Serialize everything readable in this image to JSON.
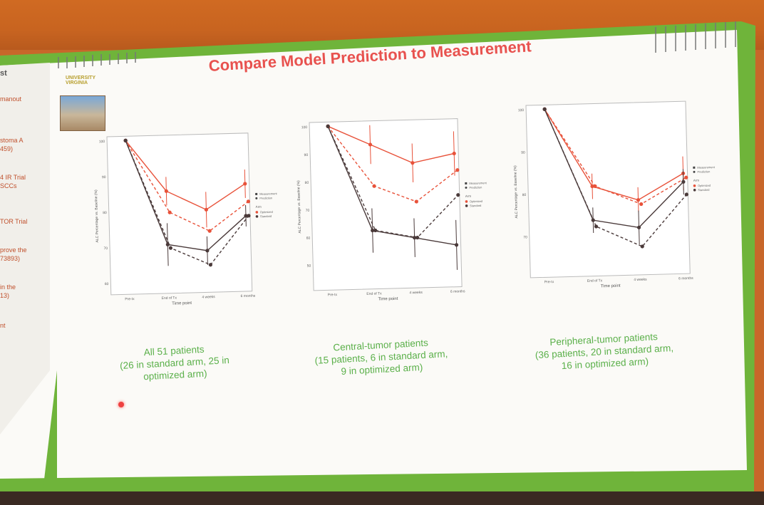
{
  "slide": {
    "title": "Compare Model Prediction to Measurement",
    "logo_text": "UNIVERSITY VIRGINIA",
    "left_panel_fragments": [
      "st",
      "manout",
      "stoma A",
      "459)",
      "4 IR Trial",
      "SCCs",
      "TOR Trial",
      "prove the",
      "73893)",
      "in the",
      "13)",
      "nt"
    ],
    "captions": [
      "All 51 patients\n(26 in standard arm, 25 in\noptimized arm)",
      "Central-tumor patients\n(15 patients, 6 in standard arm,\n9 in optimized arm)",
      "Peripheral-tumor patients\n(36 patients, 20 in standard arm,\n16 in optimized arm)"
    ]
  },
  "colors": {
    "optimized": "#e8523a",
    "standard": "#4a3a3a",
    "caption": "#5bb04a",
    "title": "#e8524f"
  },
  "chart_data": [
    {
      "type": "line",
      "categories": [
        "Pre-tx",
        "End of Tx",
        "4 weeks",
        "6 months"
      ],
      "xlabel": "Time point",
      "ylabel": "ALC Percentage vs. Baseline (%)",
      "yticks": [
        100,
        90,
        80,
        70,
        60
      ],
      "ylim": [
        60,
        100
      ],
      "legend": {
        "lines": [
          "Measurement",
          "Prediction"
        ],
        "arm_title": "Arm",
        "arms": [
          "Optimized",
          "Standard"
        ]
      },
      "series": [
        {
          "name": "Optimized",
          "kind": "Measurement",
          "values": [
            100,
            85.5,
            80,
            87
          ],
          "err": [
            0,
            4,
            5,
            4
          ]
        },
        {
          "name": "Optimized",
          "kind": "Prediction",
          "values": [
            100,
            79.5,
            74,
            82
          ],
          "err": [
            0,
            0,
            0,
            0
          ]
        },
        {
          "name": "Standard",
          "kind": "Measurement",
          "values": [
            100,
            70.5,
            68.5,
            78
          ],
          "err": [
            0,
            6,
            4,
            3
          ]
        },
        {
          "name": "Standard",
          "kind": "Prediction",
          "values": [
            100,
            69.5,
            64.5,
            78
          ],
          "err": [
            0,
            0,
            0,
            0
          ]
        }
      ]
    },
    {
      "type": "line",
      "categories": [
        "Pre-tx",
        "End of Tx",
        "4 weeks",
        "6 months"
      ],
      "xlabel": "Time point",
      "ylabel": "ALC Percentage vs. Baseline (%)",
      "yticks": [
        100,
        90,
        80,
        70,
        60,
        50
      ],
      "ylim": [
        45,
        100
      ],
      "legend": {
        "lines": [
          "Measurement",
          "Prediction"
        ],
        "arm_title": "Arm",
        "arms": [
          "Optimized",
          "Standard"
        ]
      },
      "series": [
        {
          "name": "Optimized",
          "kind": "Measurement",
          "values": [
            100,
            93,
            86,
            89
          ],
          "err": [
            0,
            7,
            7,
            8
          ]
        },
        {
          "name": "Optimized",
          "kind": "Prediction",
          "values": [
            100,
            78,
            72,
            83
          ],
          "err": [
            0,
            0,
            0,
            0
          ]
        },
        {
          "name": "Standard",
          "kind": "Measurement",
          "values": [
            100,
            62,
            59,
            56
          ],
          "err": [
            0,
            8,
            7,
            9
          ]
        },
        {
          "name": "Standard",
          "kind": "Prediction",
          "values": [
            100,
            62,
            59,
            74
          ],
          "err": [
            0,
            0,
            0,
            0
          ]
        }
      ]
    },
    {
      "type": "line",
      "categories": [
        "Pre-tx",
        "End of Tx",
        "4 weeks",
        "6 months"
      ],
      "xlabel": "Time point",
      "ylabel": "ALC Percentage vs. Baseline (%)",
      "yticks": [
        100,
        90,
        80,
        70
      ],
      "ylim": [
        63,
        100
      ],
      "legend": {
        "lines": [
          "Measurement",
          "Prediction"
        ],
        "arm_title": "Arm",
        "arms": [
          "Optimized",
          "Standard"
        ]
      },
      "series": [
        {
          "name": "Optimized",
          "kind": "Measurement",
          "values": [
            100,
            81.5,
            78,
            84
          ],
          "err": [
            0,
            3,
            3,
            4
          ]
        },
        {
          "name": "Optimized",
          "kind": "Prediction",
          "values": [
            100,
            81.5,
            77,
            83
          ],
          "err": [
            0,
            0,
            0,
            0
          ]
        },
        {
          "name": "Standard",
          "kind": "Measurement",
          "values": [
            100,
            73.5,
            71.5,
            82
          ],
          "err": [
            0,
            3,
            4,
            3
          ]
        },
        {
          "name": "Standard",
          "kind": "Prediction",
          "values": [
            100,
            72,
            67,
            79
          ],
          "err": [
            0,
            0,
            0,
            0
          ]
        }
      ]
    }
  ]
}
